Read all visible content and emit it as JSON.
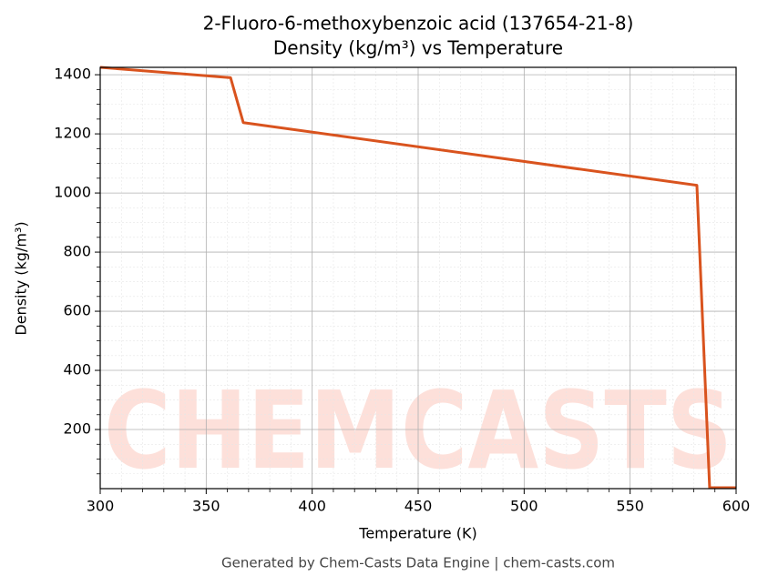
{
  "chart_data": {
    "type": "line",
    "title": "2-Fluoro-6-methoxybenzoic acid (137654-21-8)",
    "subtitle": "Density (kg/m³) vs Temperature",
    "x_label": "Temperature (K)",
    "y_label": "Density (kg/m³)",
    "footer": "Generated by Chem-Casts Data Engine | chem-casts.com",
    "watermark": "CHEMCASTS",
    "x": [
      300,
      361.5,
      367.5,
      581.5,
      587.5,
      600
    ],
    "series": [
      {
        "name": "Density",
        "color": "#d9531e",
        "values": [
          1425,
          1390,
          1238,
          1026,
          3,
          3
        ]
      }
    ],
    "xlim": [
      300,
      600
    ],
    "ylim": [
      0,
      1425
    ],
    "xticks": [
      300,
      350,
      400,
      450,
      500,
      550,
      600
    ],
    "yticks": [
      200,
      400,
      600,
      800,
      1000,
      1200,
      1400
    ],
    "minor_xticks": [
      310,
      320,
      330,
      340,
      360,
      370,
      380,
      390,
      410,
      420,
      430,
      440,
      460,
      470,
      480,
      490,
      510,
      520,
      530,
      540,
      560,
      570,
      580,
      590
    ],
    "minor_yticks": [
      50,
      100,
      150,
      250,
      300,
      350,
      450,
      500,
      550,
      650,
      700,
      750,
      850,
      900,
      950,
      1050,
      1100,
      1150,
      1250,
      1300,
      1350
    ],
    "grid": true
  }
}
